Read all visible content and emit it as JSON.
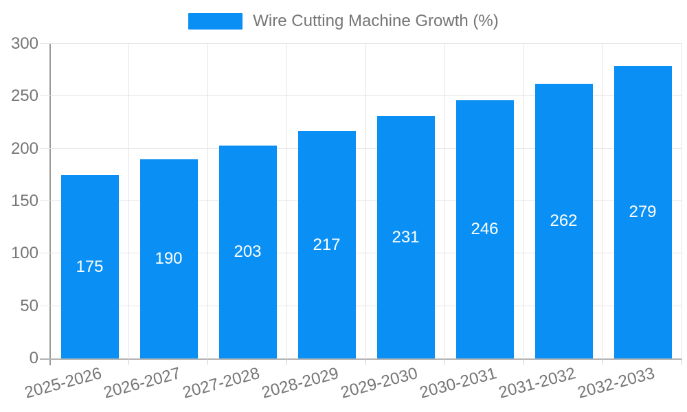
{
  "legend": {
    "label": "Wire Cutting Machine Growth (%)"
  },
  "chart_data": {
    "type": "bar",
    "title": "Wire Cutting Machine Growth (%)",
    "categories": [
      "2025-2026",
      "2026-2027",
      "2027-2028",
      "2028-2029",
      "2029-2030",
      "2030-2031",
      "2031-2032",
      "2032-2033"
    ],
    "values": [
      175,
      190,
      203,
      217,
      231,
      246,
      262,
      279
    ],
    "xlabel": "",
    "ylabel": "",
    "ylim": [
      0,
      300
    ],
    "yticks": [
      0,
      50,
      100,
      150,
      200,
      250,
      300
    ],
    "grid": true,
    "legend_position": "top-center",
    "x_label_rotation_deg": -15,
    "colors": {
      "bar": "#0a90f5",
      "value_label": "#ffffff",
      "axis_text": "#757575",
      "gridline": "#e3e3e3",
      "y_axis_line": "#999999",
      "x_axis_line": "#b3b3b3"
    }
  }
}
